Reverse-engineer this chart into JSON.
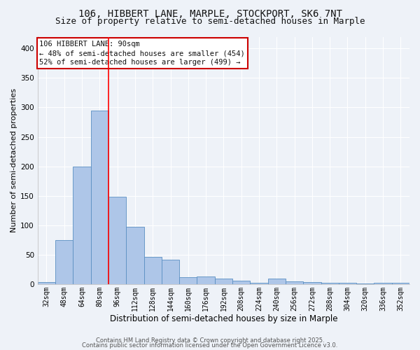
{
  "title1": "106, HIBBERT LANE, MARPLE, STOCKPORT, SK6 7NT",
  "title2": "Size of property relative to semi-detached houses in Marple",
  "xlabel": "Distribution of semi-detached houses by size in Marple",
  "ylabel": "Number of semi-detached properties",
  "categories": [
    "32sqm",
    "48sqm",
    "64sqm",
    "80sqm",
    "96sqm",
    "112sqm",
    "128sqm",
    "144sqm",
    "160sqm",
    "176sqm",
    "192sqm",
    "208sqm",
    "224sqm",
    "240sqm",
    "256sqm",
    "272sqm",
    "288sqm",
    "304sqm",
    "320sqm",
    "336sqm",
    "352sqm"
  ],
  "values": [
    3,
    75,
    200,
    295,
    148,
    97,
    46,
    42,
    12,
    13,
    10,
    6,
    2,
    10,
    5,
    3,
    2,
    2,
    1,
    2,
    2
  ],
  "bar_color": "#aec6e8",
  "bar_edge_color": "#5a8fc2",
  "bar_width": 1.0,
  "red_line_x": 3.5,
  "annotation_title": "106 HIBBERT LANE: 90sqm",
  "annotation_line1": "← 48% of semi-detached houses are smaller (454)",
  "annotation_line2": "52% of semi-detached houses are larger (499) →",
  "annotation_box_color": "#ffffff",
  "annotation_box_edge_color": "#cc0000",
  "ylim": [
    0,
    420
  ],
  "yticks": [
    0,
    50,
    100,
    150,
    200,
    250,
    300,
    350,
    400
  ],
  "footer1": "Contains HM Land Registry data © Crown copyright and database right 2025.",
  "footer2": "Contains public sector information licensed under the Open Government Licence v3.0.",
  "background_color": "#eef2f8",
  "grid_color": "#ffffff",
  "title1_fontsize": 10,
  "title2_fontsize": 9,
  "tick_fontsize": 7,
  "ylabel_fontsize": 8,
  "xlabel_fontsize": 8.5,
  "footer_fontsize": 6,
  "ann_fontsize": 7.5
}
